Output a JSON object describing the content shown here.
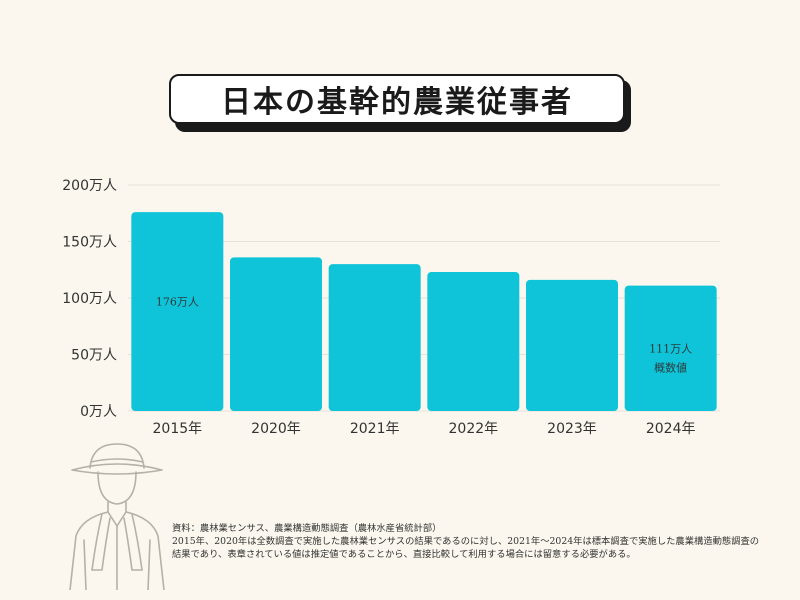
{
  "title": "日本の基幹的農業従事者",
  "colors": {
    "bar": "#0fc4d8",
    "background": "#fbf7ee",
    "grid": "#e6e2d8",
    "text": "#333333"
  },
  "chart_data": {
    "type": "bar",
    "title": "日本の基幹的農業従事者",
    "categories": [
      "2015年",
      "2020年",
      "2021年",
      "2022年",
      "2023年",
      "2024年"
    ],
    "values": [
      176,
      136,
      130,
      123,
      116,
      111
    ],
    "ylim": [
      0,
      200
    ],
    "yticks": [
      0,
      50,
      100,
      150,
      200
    ],
    "ytick_labels": [
      "0万人",
      "50万人",
      "100万人",
      "150万人",
      "200万人"
    ],
    "grid": true,
    "data_labels": [
      {
        "index": 0,
        "lines": [
          "176万人"
        ]
      },
      {
        "index": 5,
        "lines": [
          "111万人",
          "概数値"
        ]
      }
    ]
  },
  "source": {
    "line1": "資料：農林業センサス、農業構造動態調査（農林水産省統計部）",
    "line2": "2015年、2020年は全数調査で実施した農林業センサスの結果であるのに対し、2021年～2024年は標本調査で実施した農業構造動態調査の",
    "line3": "結果であり、表章されている値は推定値であることから、直接比較して利用する場合には留意する必要がある。"
  },
  "illustration": {
    "icon": "farmer-icon"
  }
}
